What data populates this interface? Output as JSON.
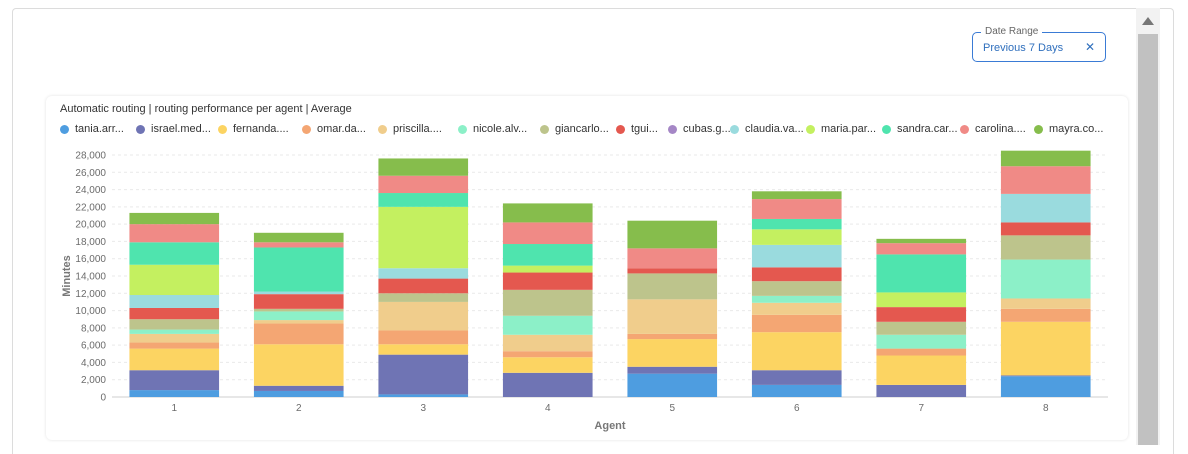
{
  "date_range": {
    "label": "Date Range",
    "value": "Previous 7 Days",
    "clear_icon": "close-icon"
  },
  "scrollbar": {
    "up_icon": "triangle-up-icon"
  },
  "chart_data": {
    "type": "bar",
    "stacked": true,
    "title": "Automatic routing | routing performance per agent | Average",
    "xlabel": "Agent",
    "ylabel": "Minutes",
    "ylim": [
      0,
      28000
    ],
    "yticks": [
      0,
      2000,
      4000,
      6000,
      8000,
      10000,
      12000,
      14000,
      16000,
      18000,
      20000,
      22000,
      24000,
      26000,
      28000
    ],
    "ytick_labels": [
      "0",
      "2,000",
      "4,000",
      "6,000",
      "8,000",
      "10,000",
      "12,000",
      "14,000",
      "16,000",
      "18,000",
      "20,000",
      "22,000",
      "24,000",
      "26,000",
      "28,000"
    ],
    "categories": [
      "1",
      "2",
      "3",
      "4",
      "5",
      "6",
      "7",
      "8"
    ],
    "grid": true,
    "legend_position": "top",
    "series": [
      {
        "name": "tania.arr...",
        "color": "#4e9de0",
        "values": [
          800,
          700,
          300,
          0,
          2700,
          1400,
          0,
          2400
        ]
      },
      {
        "name": "israel.med...",
        "color": "#6f74b4",
        "values": [
          2300,
          600,
          4600,
          2800,
          800,
          1700,
          1400,
          100
        ]
      },
      {
        "name": "fernanda....",
        "color": "#fcd462",
        "values": [
          2500,
          4800,
          1200,
          1800,
          3200,
          4400,
          3400,
          6200
        ]
      },
      {
        "name": "omar.da...",
        "color": "#f4a673",
        "values": [
          700,
          2400,
          1600,
          700,
          600,
          2000,
          800,
          1500
        ]
      },
      {
        "name": "priscilla....",
        "color": "#f0cd8c",
        "values": [
          1000,
          400,
          3300,
          1900,
          4000,
          1400,
          0,
          1200
        ]
      },
      {
        "name": "nicole.alv...",
        "color": "#8cf0c8",
        "values": [
          500,
          1000,
          0,
          2200,
          0,
          800,
          1600,
          4500
        ]
      },
      {
        "name": "giancarlo...",
        "color": "#bdc48c",
        "values": [
          1200,
          300,
          1000,
          3000,
          3000,
          1700,
          1500,
          2800
        ]
      },
      {
        "name": "tgui...",
        "color": "#e4584f",
        "values": [
          1300,
          1700,
          1700,
          2000,
          600,
          1600,
          1700,
          1500
        ]
      },
      {
        "name": "cubas.g...",
        "color": "#a587c6",
        "values": [
          0,
          0,
          0,
          0,
          0,
          0,
          0,
          0
        ]
      },
      {
        "name": "claudia.va...",
        "color": "#9adbde",
        "values": [
          1500,
          300,
          1200,
          0,
          0,
          2600,
          0,
          3300
        ]
      },
      {
        "name": "maria.par...",
        "color": "#c4f060",
        "values": [
          3500,
          0,
          7100,
          800,
          0,
          1800,
          1700,
          0
        ]
      },
      {
        "name": "sandra.car...",
        "color": "#4fe4ae",
        "values": [
          2600,
          5100,
          1600,
          2500,
          0,
          1200,
          4400,
          0
        ]
      },
      {
        "name": "carolina....",
        "color": "#f08a86",
        "values": [
          2100,
          600,
          2000,
          2500,
          2300,
          2300,
          1300,
          3200
        ]
      },
      {
        "name": "mayra.co...",
        "color": "#86bd4c",
        "values": [
          1300,
          1100,
          2000,
          2200,
          3200,
          900,
          500,
          1800
        ]
      }
    ]
  }
}
